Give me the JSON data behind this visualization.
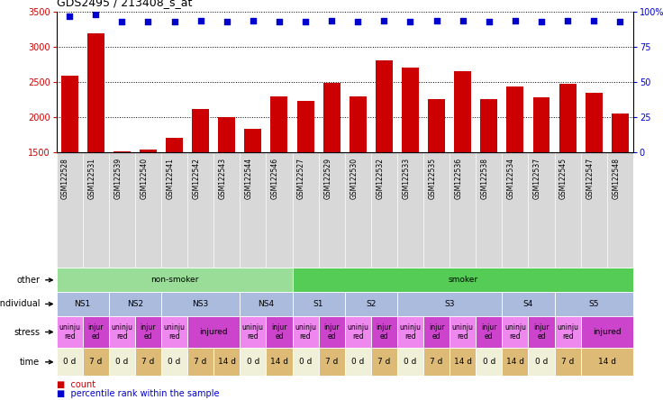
{
  "title": "GDS2495 / 213408_s_at",
  "samples": [
    "GSM122528",
    "GSM122531",
    "GSM122539",
    "GSM122540",
    "GSM122541",
    "GSM122542",
    "GSM122543",
    "GSM122544",
    "GSM122546",
    "GSM122527",
    "GSM122529",
    "GSM122530",
    "GSM122532",
    "GSM122533",
    "GSM122535",
    "GSM122536",
    "GSM122538",
    "GSM122534",
    "GSM122537",
    "GSM122545",
    "GSM122547",
    "GSM122548"
  ],
  "counts": [
    2590,
    3200,
    1510,
    1530,
    1700,
    2110,
    2000,
    1830,
    2300,
    2230,
    2490,
    2300,
    2810,
    2700,
    2250,
    2650,
    2260,
    2430,
    2280,
    2480,
    2350,
    2050
  ],
  "percentile": [
    97,
    98,
    93,
    93,
    93,
    94,
    93,
    94,
    93,
    93,
    94,
    93,
    94,
    93,
    94,
    94,
    93,
    94,
    93,
    94,
    94,
    93
  ],
  "ylim_left": [
    1500,
    3500
  ],
  "ylim_right": [
    0,
    100
  ],
  "yticks_left": [
    1500,
    2000,
    2500,
    3000,
    3500
  ],
  "yticks_right": [
    0,
    25,
    50,
    75,
    100
  ],
  "bar_color": "#cc0000",
  "dot_color": "#0000cc",
  "bg_color": "#ffffff",
  "xtick_bg": "#d8d8d8",
  "row_other": {
    "label": "other",
    "segments": [
      {
        "text": "non-smoker",
        "start": 0,
        "end": 9,
        "color": "#99dd99"
      },
      {
        "text": "smoker",
        "start": 9,
        "end": 22,
        "color": "#55cc55"
      }
    ]
  },
  "row_individual": {
    "label": "individual",
    "segments": [
      {
        "text": "NS1",
        "start": 0,
        "end": 2,
        "color": "#aabbdd"
      },
      {
        "text": "NS2",
        "start": 2,
        "end": 4,
        "color": "#aabbdd"
      },
      {
        "text": "NS3",
        "start": 4,
        "end": 7,
        "color": "#aabbdd"
      },
      {
        "text": "NS4",
        "start": 7,
        "end": 9,
        "color": "#aabbdd"
      },
      {
        "text": "S1",
        "start": 9,
        "end": 11,
        "color": "#aabbdd"
      },
      {
        "text": "S2",
        "start": 11,
        "end": 13,
        "color": "#aabbdd"
      },
      {
        "text": "S3",
        "start": 13,
        "end": 17,
        "color": "#aabbdd"
      },
      {
        "text": "S4",
        "start": 17,
        "end": 19,
        "color": "#aabbdd"
      },
      {
        "text": "S5",
        "start": 19,
        "end": 22,
        "color": "#aabbdd"
      }
    ]
  },
  "row_stress": {
    "label": "stress",
    "segments": [
      {
        "text": "uninjured",
        "start": 0,
        "end": 1,
        "color": "#ee88ee"
      },
      {
        "text": "injured",
        "start": 1,
        "end": 2,
        "color": "#cc44cc"
      },
      {
        "text": "uninjured",
        "start": 2,
        "end": 3,
        "color": "#ee88ee"
      },
      {
        "text": "injured",
        "start": 3,
        "end": 4,
        "color": "#cc44cc"
      },
      {
        "text": "uninjured",
        "start": 4,
        "end": 5,
        "color": "#ee88ee"
      },
      {
        "text": "injured",
        "start": 5,
        "end": 7,
        "color": "#cc44cc"
      },
      {
        "text": "uninjured",
        "start": 7,
        "end": 8,
        "color": "#ee88ee"
      },
      {
        "text": "injured",
        "start": 8,
        "end": 9,
        "color": "#cc44cc"
      },
      {
        "text": "uninjured",
        "start": 9,
        "end": 10,
        "color": "#ee88ee"
      },
      {
        "text": "injured",
        "start": 10,
        "end": 11,
        "color": "#cc44cc"
      },
      {
        "text": "uninjured",
        "start": 11,
        "end": 12,
        "color": "#ee88ee"
      },
      {
        "text": "injured",
        "start": 12,
        "end": 13,
        "color": "#cc44cc"
      },
      {
        "text": "uninjured",
        "start": 13,
        "end": 14,
        "color": "#ee88ee"
      },
      {
        "text": "injured",
        "start": 14,
        "end": 15,
        "color": "#cc44cc"
      },
      {
        "text": "uninjured",
        "start": 15,
        "end": 16,
        "color": "#ee88ee"
      },
      {
        "text": "injured",
        "start": 16,
        "end": 17,
        "color": "#cc44cc"
      },
      {
        "text": "uninjured",
        "start": 17,
        "end": 18,
        "color": "#ee88ee"
      },
      {
        "text": "injured",
        "start": 18,
        "end": 19,
        "color": "#cc44cc"
      },
      {
        "text": "uninjured",
        "start": 19,
        "end": 20,
        "color": "#ee88ee"
      },
      {
        "text": "injured",
        "start": 20,
        "end": 22,
        "color": "#cc44cc"
      }
    ]
  },
  "row_time": {
    "label": "time",
    "segments": [
      {
        "text": "0 d",
        "start": 0,
        "end": 1,
        "color": "#f0f0d8"
      },
      {
        "text": "7 d",
        "start": 1,
        "end": 2,
        "color": "#ddbb77"
      },
      {
        "text": "0 d",
        "start": 2,
        "end": 3,
        "color": "#f0f0d8"
      },
      {
        "text": "7 d",
        "start": 3,
        "end": 4,
        "color": "#ddbb77"
      },
      {
        "text": "0 d",
        "start": 4,
        "end": 5,
        "color": "#f0f0d8"
      },
      {
        "text": "7 d",
        "start": 5,
        "end": 6,
        "color": "#ddbb77"
      },
      {
        "text": "14 d",
        "start": 6,
        "end": 7,
        "color": "#ddbb77"
      },
      {
        "text": "0 d",
        "start": 7,
        "end": 8,
        "color": "#f0f0d8"
      },
      {
        "text": "14 d",
        "start": 8,
        "end": 9,
        "color": "#ddbb77"
      },
      {
        "text": "0 d",
        "start": 9,
        "end": 10,
        "color": "#f0f0d8"
      },
      {
        "text": "7 d",
        "start": 10,
        "end": 11,
        "color": "#ddbb77"
      },
      {
        "text": "0 d",
        "start": 11,
        "end": 12,
        "color": "#f0f0d8"
      },
      {
        "text": "7 d",
        "start": 12,
        "end": 13,
        "color": "#ddbb77"
      },
      {
        "text": "0 d",
        "start": 13,
        "end": 14,
        "color": "#f0f0d8"
      },
      {
        "text": "7 d",
        "start": 14,
        "end": 15,
        "color": "#ddbb77"
      },
      {
        "text": "14 d",
        "start": 15,
        "end": 16,
        "color": "#ddbb77"
      },
      {
        "text": "0 d",
        "start": 16,
        "end": 17,
        "color": "#f0f0d8"
      },
      {
        "text": "14 d",
        "start": 17,
        "end": 18,
        "color": "#ddbb77"
      },
      {
        "text": "0 d",
        "start": 18,
        "end": 19,
        "color": "#f0f0d8"
      },
      {
        "text": "7 d",
        "start": 19,
        "end": 20,
        "color": "#ddbb77"
      },
      {
        "text": "14 d",
        "start": 20,
        "end": 22,
        "color": "#ddbb77"
      }
    ]
  },
  "legend": [
    {
      "color": "#cc0000",
      "label": "count"
    },
    {
      "color": "#0000cc",
      "label": "percentile rank within the sample"
    }
  ]
}
